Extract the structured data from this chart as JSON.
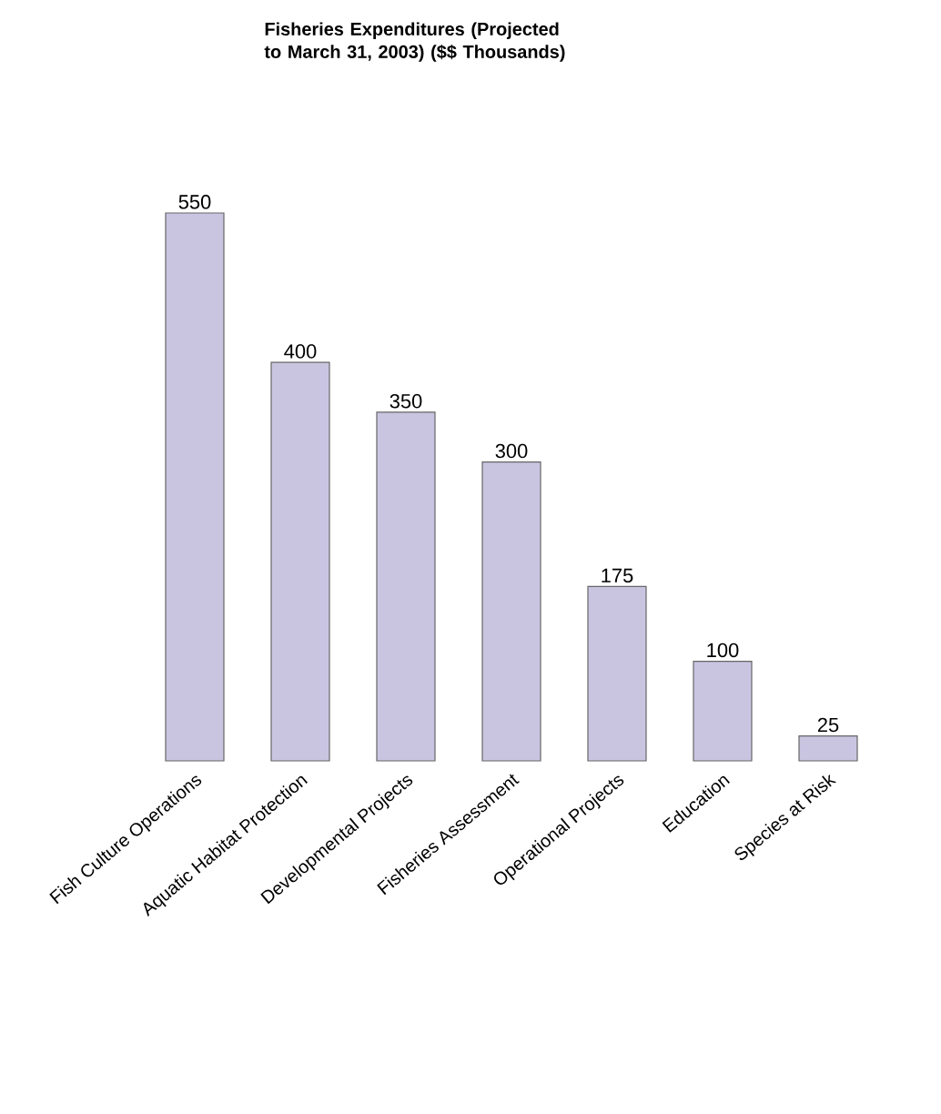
{
  "chart_data": {
    "type": "bar",
    "title": "Fisheries Expenditures (Projected to March 31, 2003) ($$ Thousands)",
    "categories": [
      "Fish Culture Operations",
      "Aquatic Habitat Protection",
      "Developmental Projects",
      "Fisheries Assessment",
      "Operational Projects",
      "Education",
      "Species at Risk"
    ],
    "values": [
      550,
      400,
      350,
      300,
      175,
      100,
      25
    ],
    "color": "#c9c5e1",
    "data_labels": true
  }
}
